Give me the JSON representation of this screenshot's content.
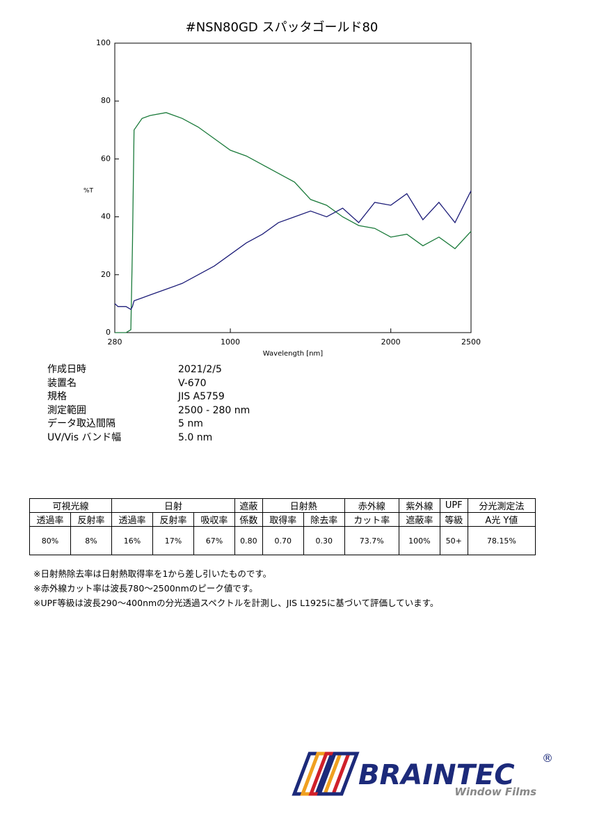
{
  "chart_data": {
    "type": "line",
    "title": "#NSN80GD  スパッタゴールド80",
    "xlabel": "Wavelength [nm]",
    "ylabel": "%T",
    "x": [
      280,
      300,
      350,
      380,
      390,
      400,
      450,
      500,
      600,
      700,
      800,
      900,
      1000,
      1100,
      1200,
      1300,
      1400,
      1500,
      1600,
      1700,
      1800,
      1900,
      2000,
      2100,
      2200,
      2300,
      2400,
      2500
    ],
    "series": [
      {
        "color": "#1a7a3a",
        "values": [
          0,
          0,
          0,
          1,
          30,
          70,
          74,
          75,
          76,
          74,
          71,
          67,
          63,
          61,
          58,
          55,
          52,
          46,
          44,
          40,
          37,
          36,
          33,
          34,
          30,
          33,
          29,
          35
        ]
      },
      {
        "color": "#1c1c78",
        "values": [
          10,
          9,
          9,
          8,
          9,
          11,
          12,
          13,
          15,
          17,
          20,
          23,
          27,
          31,
          34,
          38,
          40,
          42,
          40,
          43,
          38,
          45,
          44,
          48,
          39,
          45,
          38,
          49
        ]
      }
    ],
    "xlim": [
      280,
      2500
    ],
    "ylim": [
      0,
      100
    ],
    "xticks": [
      280,
      1000,
      2000,
      2500
    ],
    "yticks": [
      0,
      20,
      40,
      60,
      80,
      100
    ]
  },
  "info": [
    [
      "作成日時",
      "2021/2/5"
    ],
    [
      "装置名",
      "V-670"
    ],
    [
      "規格",
      "JIS A5759"
    ],
    [
      "測定範囲",
      "2500 - 280 nm"
    ],
    [
      "データ取込間隔",
      "5 nm"
    ],
    [
      "UV/Vis バンド幅",
      "5.0 nm"
    ]
  ],
  "table": {
    "groups": [
      "可視光線",
      "日射",
      "遮蔽",
      "日射熱",
      "赤外線",
      "紫外線",
      "UPF",
      "分光測定法"
    ],
    "subheaders": [
      "透過率",
      "反射率",
      "透過率",
      "反射率",
      "吸収率",
      "係数",
      "取得率",
      "除去率",
      "カット率",
      "遮蔽率",
      "等級",
      "A光 Y値"
    ],
    "values": [
      "80%",
      "8%",
      "16%",
      "17%",
      "67%",
      "0.80",
      "0.70",
      "0.30",
      "73.7%",
      "100%",
      "50+",
      "78.15%"
    ]
  },
  "notes": [
    "※日射熱除去率は日射熱取得率を1から差し引いたものです。",
    "※赤外線カット率は波長780～2500nmのピーク値です。",
    "※UPF等級は波長290～400nmの分光透過スペクトルを計測し、JIS L1925に基づいて評価しています。"
  ],
  "logo": {
    "brand": "BRAINTEC",
    "mark": "®",
    "tagline": "Window Films"
  }
}
